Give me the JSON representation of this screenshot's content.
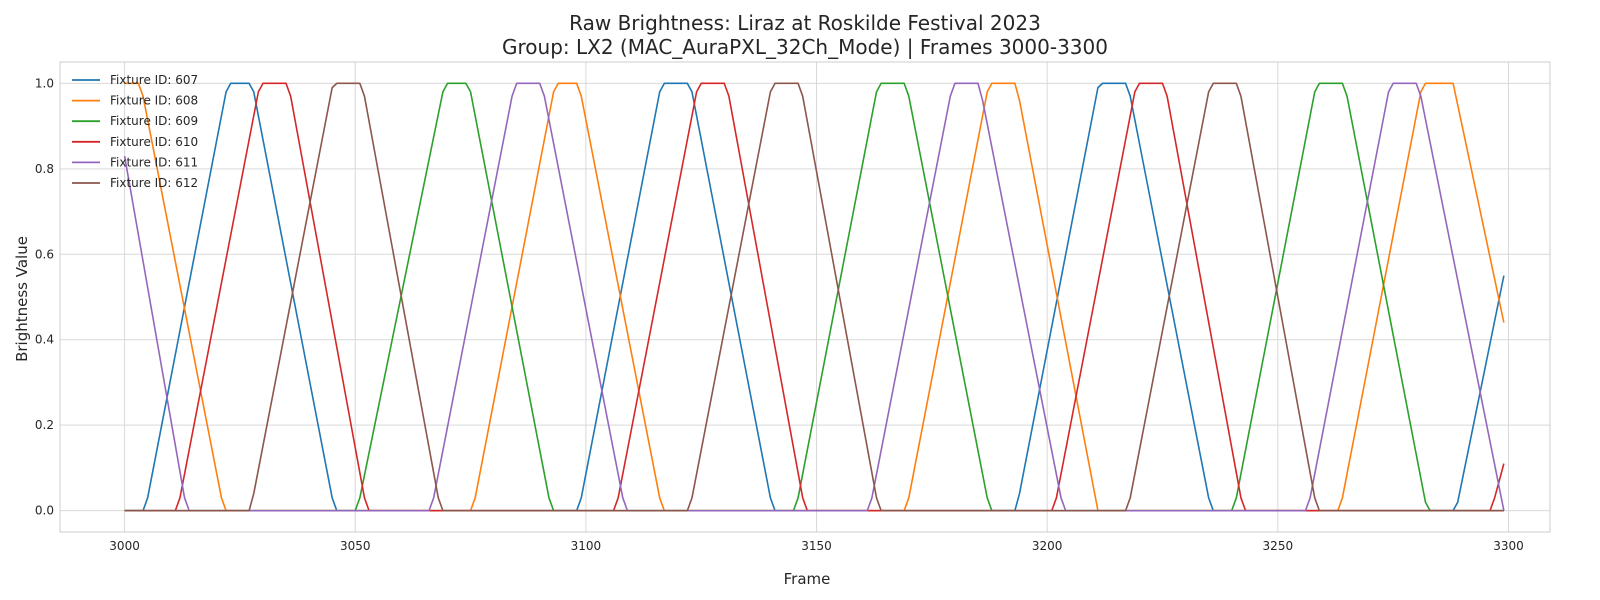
{
  "chart_data": {
    "type": "line",
    "title": "Raw Brightness: Liraz at Roskilde Festival 2023",
    "subtitle": "Group: LX2 (MAC_AuraPXL_32Ch_Mode) | Frames 3000-3300",
    "xlabel": "Frame",
    "ylabel": "Brightness Value",
    "xlim": [
      2986,
      3309
    ],
    "ylim": [
      -0.05,
      1.05
    ],
    "x_ticks": [
      3000,
      3050,
      3100,
      3150,
      3200,
      3250,
      3300
    ],
    "y_ticks": [
      0.0,
      0.2,
      0.4,
      0.6,
      0.8,
      1.0
    ],
    "y_tick_labels": [
      "0.0",
      "0.2",
      "0.4",
      "0.6",
      "0.8",
      "1.0"
    ],
    "grid": true,
    "legend_position": "top-left",
    "series": [
      {
        "name": "Fixture ID: 607",
        "color": "#1f77b4",
        "points": [
          [
            3000,
            0
          ],
          [
            3004,
            0
          ],
          [
            3005,
            0.03
          ],
          [
            3022,
            0.98
          ],
          [
            3023,
            1
          ],
          [
            3027,
            1
          ],
          [
            3028,
            0.98
          ],
          [
            3045,
            0.03
          ],
          [
            3046,
            0
          ],
          [
            3098,
            0
          ],
          [
            3099,
            0.03
          ],
          [
            3116,
            0.98
          ],
          [
            3117,
            1
          ],
          [
            3122,
            1
          ],
          [
            3123,
            0.98
          ],
          [
            3140,
            0.03
          ],
          [
            3141,
            0
          ],
          [
            3193,
            0
          ],
          [
            3194,
            0.04
          ],
          [
            3211,
            0.99
          ],
          [
            3212,
            1
          ],
          [
            3217,
            1
          ],
          [
            3218,
            0.97
          ],
          [
            3235,
            0.03
          ],
          [
            3236,
            0
          ],
          [
            3288,
            0
          ],
          [
            3289,
            0.02
          ],
          [
            3299,
            0.55
          ]
        ]
      },
      {
        "name": "Fixture ID: 608",
        "color": "#ff7f0e",
        "points": [
          [
            3000,
            1
          ],
          [
            3003,
            1
          ],
          [
            3004,
            0.97
          ],
          [
            3021,
            0.03
          ],
          [
            3022,
            0
          ],
          [
            3075,
            0
          ],
          [
            3076,
            0.03
          ],
          [
            3093,
            0.98
          ],
          [
            3094,
            1
          ],
          [
            3098,
            1
          ],
          [
            3099,
            0.97
          ],
          [
            3116,
            0.03
          ],
          [
            3117,
            0
          ],
          [
            3169,
            0
          ],
          [
            3170,
            0.03
          ],
          [
            3187,
            0.98
          ],
          [
            3188,
            1
          ],
          [
            3193,
            1
          ],
          [
            3194,
            0.96
          ],
          [
            3211,
            0
          ],
          [
            3263,
            0
          ],
          [
            3264,
            0.03
          ],
          [
            3281,
            0.98
          ],
          [
            3282,
            1
          ],
          [
            3288,
            1
          ],
          [
            3299,
            0.44
          ]
        ]
      },
      {
        "name": "Fixture ID: 609",
        "color": "#2ca02c",
        "points": [
          [
            3000,
            0
          ],
          [
            3050,
            0
          ],
          [
            3051,
            0.03
          ],
          [
            3069,
            0.98
          ],
          [
            3070,
            1
          ],
          [
            3074,
            1
          ],
          [
            3075,
            0.98
          ],
          [
            3092,
            0.03
          ],
          [
            3093,
            0
          ],
          [
            3145,
            0
          ],
          [
            3146,
            0.03
          ],
          [
            3163,
            0.98
          ],
          [
            3164,
            1
          ],
          [
            3169,
            1
          ],
          [
            3170,
            0.97
          ],
          [
            3187,
            0.03
          ],
          [
            3188,
            0
          ],
          [
            3240,
            0
          ],
          [
            3241,
            0.03
          ],
          [
            3258,
            0.98
          ],
          [
            3259,
            1
          ],
          [
            3264,
            1
          ],
          [
            3265,
            0.97
          ],
          [
            3282,
            0.02
          ],
          [
            3283,
            0
          ],
          [
            3299,
            0
          ]
        ]
      },
      {
        "name": "Fixture ID: 610",
        "color": "#d62728",
        "points": [
          [
            3000,
            0
          ],
          [
            3011,
            0
          ],
          [
            3012,
            0.03
          ],
          [
            3029,
            0.98
          ],
          [
            3030,
            1
          ],
          [
            3035,
            1
          ],
          [
            3036,
            0.97
          ],
          [
            3052,
            0.03
          ],
          [
            3053,
            0
          ],
          [
            3106,
            0
          ],
          [
            3107,
            0.03
          ],
          [
            3124,
            0.98
          ],
          [
            3125,
            1
          ],
          [
            3130,
            1
          ],
          [
            3131,
            0.97
          ],
          [
            3147,
            0.03
          ],
          [
            3148,
            0
          ],
          [
            3201,
            0
          ],
          [
            3202,
            0.03
          ],
          [
            3219,
            0.98
          ],
          [
            3220,
            1
          ],
          [
            3225,
            1
          ],
          [
            3226,
            0.97
          ],
          [
            3242,
            0.03
          ],
          [
            3243,
            0
          ],
          [
            3296,
            0
          ],
          [
            3297,
            0.03
          ],
          [
            3299,
            0.11
          ]
        ]
      },
      {
        "name": "Fixture ID: 611",
        "color": "#9467bd",
        "points": [
          [
            3000,
            0.83
          ],
          [
            3013,
            0.03
          ],
          [
            3014,
            0
          ],
          [
            3066,
            0
          ],
          [
            3067,
            0.03
          ],
          [
            3084,
            0.97
          ],
          [
            3085,
            1
          ],
          [
            3090,
            1
          ],
          [
            3091,
            0.97
          ],
          [
            3108,
            0.03
          ],
          [
            3109,
            0
          ],
          [
            3161,
            0
          ],
          [
            3162,
            0.03
          ],
          [
            3179,
            0.97
          ],
          [
            3180,
            1
          ],
          [
            3185,
            1
          ],
          [
            3186,
            0.96
          ],
          [
            3203,
            0.03
          ],
          [
            3204,
            0
          ],
          [
            3256,
            0
          ],
          [
            3257,
            0.03
          ],
          [
            3274,
            0.98
          ],
          [
            3275,
            1
          ],
          [
            3280,
            1
          ],
          [
            3281,
            0.97
          ],
          [
            3299,
            0
          ]
        ]
      },
      {
        "name": "Fixture ID: 612",
        "color": "#8c564b",
        "points": [
          [
            3000,
            0
          ],
          [
            3027,
            0
          ],
          [
            3028,
            0.04
          ],
          [
            3045,
            0.99
          ],
          [
            3046,
            1
          ],
          [
            3051,
            1
          ],
          [
            3052,
            0.97
          ],
          [
            3068,
            0.03
          ],
          [
            3069,
            0
          ],
          [
            3122,
            0
          ],
          [
            3123,
            0.03
          ],
          [
            3140,
            0.98
          ],
          [
            3141,
            1
          ],
          [
            3146,
            1
          ],
          [
            3147,
            0.97
          ],
          [
            3163,
            0.03
          ],
          [
            3164,
            0
          ],
          [
            3217,
            0
          ],
          [
            3218,
            0.03
          ],
          [
            3235,
            0.98
          ],
          [
            3236,
            1
          ],
          [
            3241,
            1
          ],
          [
            3242,
            0.97
          ],
          [
            3258,
            0.03
          ],
          [
            3259,
            0
          ],
          [
            3299,
            0
          ]
        ]
      }
    ]
  }
}
